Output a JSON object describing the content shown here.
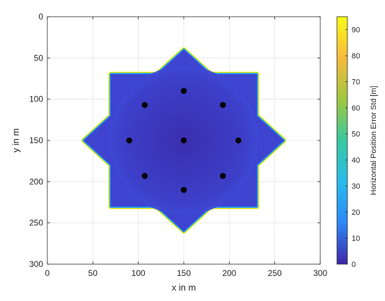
{
  "chart_data": {
    "type": "heatmap",
    "title": "",
    "xlabel": "x in m",
    "ylabel": "y in m",
    "xlim": [
      0,
      300
    ],
    "ylim": [
      0,
      300
    ],
    "y_axis_direction": "reversed (0 at top, 300 at bottom)",
    "xticks": [
      0,
      50,
      100,
      150,
      200,
      250,
      300
    ],
    "yticks": [
      0,
      50,
      100,
      150,
      200,
      250,
      300
    ],
    "grid": true,
    "colormap": "parula",
    "colorbar": {
      "label": "Horizontal Position Error Std [m]",
      "range": [
        0,
        95
      ],
      "ticks": [
        0,
        10,
        20,
        30,
        40,
        50,
        60,
        70,
        80,
        90
      ],
      "colors": [
        "#3e26a8",
        "#2e87f7",
        "#29bbec",
        "#39c89f",
        "#a0c73f",
        "#f6ba3c",
        "#f9fb15"
      ]
    },
    "region": {
      "shape": "eight-pointed star (two overlapping squares)",
      "center": [
        150,
        150
      ],
      "extent": [
        40,
        260
      ],
      "interior_value": 2,
      "edge_value": 95
    },
    "anchors": {
      "marker": "filled black circle",
      "points": [
        [
          150,
          90
        ],
        [
          107,
          107
        ],
        [
          193,
          107
        ],
        [
          90,
          150
        ],
        [
          150,
          150
        ],
        [
          210,
          150
        ],
        [
          107,
          193
        ],
        [
          193,
          193
        ],
        [
          150,
          210
        ]
      ]
    }
  }
}
